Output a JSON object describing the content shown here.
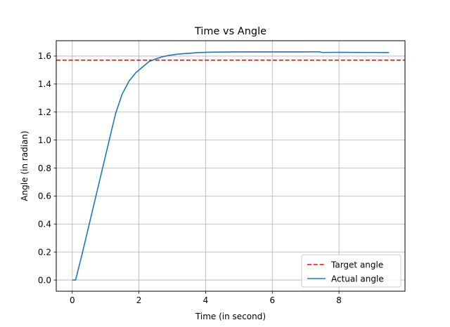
{
  "chart_data": {
    "type": "line",
    "title": "Time vs Angle",
    "xlabel": "Time (in second)",
    "ylabel": "Angle (in radian)",
    "xlim": [
      -0.48,
      9.98
    ],
    "ylim": [
      -0.08,
      1.71
    ],
    "xticks": [
      0,
      2,
      4,
      6,
      8
    ],
    "yticks": [
      0.0,
      0.2,
      0.4,
      0.6,
      0.8,
      1.0,
      1.2,
      1.4,
      1.6
    ],
    "ytick_labels": [
      "0.0",
      "0.2",
      "0.4",
      "0.6",
      "0.8",
      "1.0",
      "1.2",
      "1.4",
      "1.6"
    ],
    "xtick_labels": [
      "0",
      "2",
      "4",
      "6",
      "8"
    ],
    "grid": true,
    "legend_position": "bottom-right",
    "series": [
      {
        "name": "Target angle",
        "style": "dashed",
        "color": "#ff0000",
        "x": [
          -0.48,
          9.98
        ],
        "y": [
          1.571,
          1.571
        ]
      },
      {
        "name": "Actual angle",
        "style": "solid",
        "color": "#1f77b4",
        "x": [
          0.0,
          0.05,
          0.1,
          0.3,
          0.5,
          0.7,
          0.9,
          1.1,
          1.3,
          1.5,
          1.7,
          1.9,
          2.1,
          2.3,
          2.5,
          2.7,
          2.9,
          3.2,
          3.5,
          3.8,
          4.0,
          4.2,
          4.5,
          5.0,
          6.0,
          7.0,
          7.4,
          7.5,
          8.0,
          9.0,
          9.5
        ],
        "y": [
          0.0,
          0.0,
          0.0,
          0.19,
          0.39,
          0.59,
          0.79,
          0.99,
          1.19,
          1.33,
          1.42,
          1.48,
          1.52,
          1.56,
          1.58,
          1.595,
          1.605,
          1.615,
          1.62,
          1.625,
          1.627,
          1.628,
          1.629,
          1.63,
          1.63,
          1.63,
          1.631,
          1.626,
          1.627,
          1.626,
          1.625
        ]
      }
    ]
  }
}
